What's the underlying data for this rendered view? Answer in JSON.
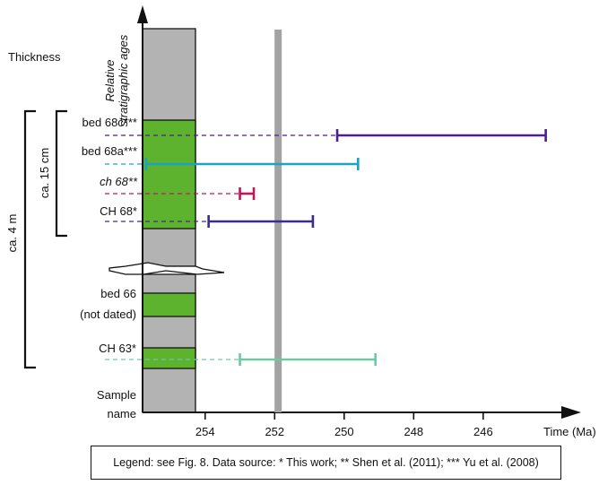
{
  "chart_data": {
    "type": "range",
    "x_axis": {
      "label": "Time (Ma)",
      "reversed": true,
      "range": [
        255.8,
        243.7
      ],
      "ticks": [
        254,
        252,
        250,
        248,
        246
      ]
    },
    "reference_age": 251.9,
    "section_labels": {
      "thickness": "Thickness",
      "relative_ages_line1": "Relative",
      "relative_ages_line2": "stratigraphic ages",
      "sample_name_line1": "Sample",
      "sample_name_line2": "name",
      "scale_4m": "ca. 4 m",
      "scale_15cm": "ca. 15 cm"
    },
    "samples": [
      {
        "name": "bed 68c***",
        "italic": false,
        "min": 244.2,
        "max": 250.2,
        "color": "#4b1f8c"
      },
      {
        "name": "bed 68a***",
        "italic": false,
        "min": 249.6,
        "max": 255.7,
        "color": "#1aa3c4"
      },
      {
        "name": "ch 68**",
        "italic": true,
        "min": 252.6,
        "max": 253.0,
        "color": "#c0155a"
      },
      {
        "name": "CH 68*",
        "italic": false,
        "min": 250.9,
        "max": 253.9,
        "color": "#3d2a8f"
      },
      {
        "name": "CH 63*",
        "italic": false,
        "min": 249.1,
        "max": 253.0,
        "color": "#6cc9a4"
      }
    ],
    "undated": {
      "line1": "bed 66",
      "line2": "(not dated)"
    },
    "legend_text": "Legend: see Fig. 8.  Data source: * This work; ** Shen et al. (2011); *** Yu et al. (2008)"
  },
  "colors": {
    "column_fill": "#b3b3b3",
    "bed_fill": "#5db22e",
    "reference_line": "#a3a3a3"
  }
}
